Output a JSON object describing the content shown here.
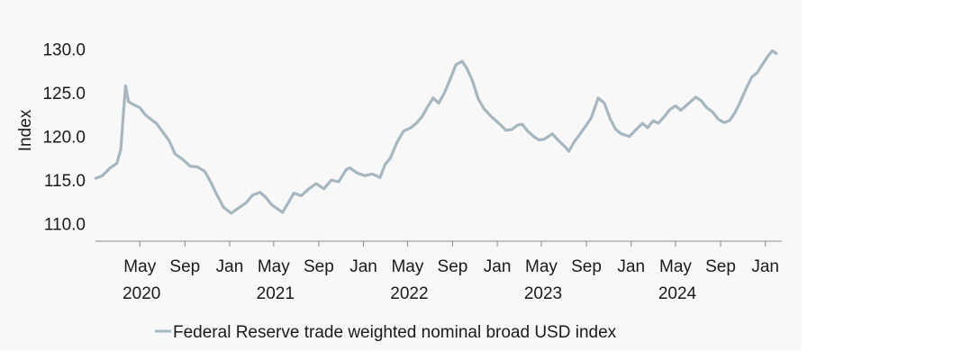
{
  "chart_data": {
    "type": "line",
    "title": "",
    "xlabel": "",
    "ylabel": "Index",
    "ylim": [
      108,
      131.5
    ],
    "yticks": [
      "110.0",
      "115.0",
      "120.0",
      "125.0",
      "130.0"
    ],
    "ytick_values": [
      110,
      115,
      120,
      125,
      130
    ],
    "xlim": [
      "2020-01-01",
      "2025-02-15"
    ],
    "xticks": [
      {
        "date": "2020-05-01",
        "label": "May",
        "year": "2020"
      },
      {
        "date": "2020-09-01",
        "label": "Sep",
        "year": ""
      },
      {
        "date": "2021-01-01",
        "label": "Jan",
        "year": ""
      },
      {
        "date": "2021-05-01",
        "label": "May",
        "year": "2021"
      },
      {
        "date": "2021-09-01",
        "label": "Sep",
        "year": ""
      },
      {
        "date": "2022-01-01",
        "label": "Jan",
        "year": ""
      },
      {
        "date": "2022-05-01",
        "label": "May",
        "year": "2022"
      },
      {
        "date": "2022-09-01",
        "label": "Sep",
        "year": ""
      },
      {
        "date": "2023-01-01",
        "label": "Jan",
        "year": ""
      },
      {
        "date": "2023-05-01",
        "label": "May",
        "year": "2023"
      },
      {
        "date": "2023-09-01",
        "label": "Sep",
        "year": ""
      },
      {
        "date": "2024-01-01",
        "label": "Jan",
        "year": ""
      },
      {
        "date": "2024-05-01",
        "label": "May",
        "year": "2024"
      },
      {
        "date": "2024-09-01",
        "label": "Sep",
        "year": ""
      },
      {
        "date": "2025-01-01",
        "label": "Jan",
        "year": ""
      }
    ],
    "grid": false,
    "legend_position": "bottom-left",
    "series": [
      {
        "name": "Federal Reserve trade weighted nominal broad USD index",
        "color": "#a6b7c0",
        "x": [
          "2020-01-02",
          "2020-01-20",
          "2020-02-10",
          "2020-02-28",
          "2020-03-10",
          "2020-03-18",
          "2020-03-23",
          "2020-03-31",
          "2020-04-15",
          "2020-05-01",
          "2020-05-15",
          "2020-06-05",
          "2020-06-15",
          "2020-07-01",
          "2020-07-20",
          "2020-08-05",
          "2020-08-25",
          "2020-09-15",
          "2020-10-05",
          "2020-10-25",
          "2020-11-10",
          "2020-11-25",
          "2020-12-15",
          "2021-01-05",
          "2021-01-25",
          "2021-02-15",
          "2021-03-05",
          "2021-03-25",
          "2021-04-10",
          "2021-04-25",
          "2021-05-15",
          "2021-05-25",
          "2021-06-10",
          "2021-06-25",
          "2021-07-15",
          "2021-08-05",
          "2021-08-25",
          "2021-09-15",
          "2021-10-05",
          "2021-10-25",
          "2021-11-15",
          "2021-11-25",
          "2021-12-15",
          "2022-01-05",
          "2022-01-25",
          "2022-02-15",
          "2022-03-01",
          "2022-03-15",
          "2022-04-01",
          "2022-04-20",
          "2022-05-10",
          "2022-05-25",
          "2022-06-10",
          "2022-06-25",
          "2022-07-10",
          "2022-07-25",
          "2022-08-10",
          "2022-08-25",
          "2022-09-10",
          "2022-09-27",
          "2022-10-10",
          "2022-10-25",
          "2022-11-10",
          "2022-11-25",
          "2022-12-15",
          "2023-01-05",
          "2023-01-25",
          "2023-02-10",
          "2023-02-25",
          "2023-03-10",
          "2023-03-25",
          "2023-04-10",
          "2023-04-25",
          "2023-05-10",
          "2023-05-31",
          "2023-06-15",
          "2023-07-05",
          "2023-07-15",
          "2023-07-30",
          "2023-08-15",
          "2023-09-01",
          "2023-09-15",
          "2023-10-03",
          "2023-10-20",
          "2023-11-05",
          "2023-11-20",
          "2023-12-05",
          "2023-12-27",
          "2024-01-15",
          "2024-02-01",
          "2024-02-15",
          "2024-03-01",
          "2024-03-15",
          "2024-04-01",
          "2024-04-16",
          "2024-05-01",
          "2024-05-15",
          "2024-06-01",
          "2024-06-25",
          "2024-07-10",
          "2024-07-25",
          "2024-08-10",
          "2024-08-25",
          "2024-09-10",
          "2024-09-25",
          "2024-10-10",
          "2024-10-25",
          "2024-11-10",
          "2024-11-25",
          "2024-12-10",
          "2024-12-25",
          "2025-01-10",
          "2025-01-20",
          "2025-01-31"
        ],
        "values": [
          115.2,
          115.5,
          116.4,
          116.9,
          118.5,
          123.0,
          125.8,
          124.0,
          123.6,
          123.3,
          122.5,
          121.8,
          121.5,
          120.6,
          119.5,
          118.0,
          117.4,
          116.6,
          116.5,
          116.0,
          114.8,
          113.5,
          111.9,
          111.2,
          111.8,
          112.4,
          113.3,
          113.6,
          113.0,
          112.2,
          111.6,
          111.3,
          112.4,
          113.5,
          113.2,
          114.0,
          114.6,
          114.0,
          115.0,
          114.8,
          116.2,
          116.4,
          115.8,
          115.5,
          115.7,
          115.3,
          116.8,
          117.5,
          119.2,
          120.6,
          121.0,
          121.5,
          122.3,
          123.4,
          124.4,
          123.8,
          125.0,
          126.5,
          128.2,
          128.6,
          127.8,
          126.4,
          124.3,
          123.2,
          122.3,
          121.5,
          120.7,
          120.8,
          121.3,
          121.4,
          120.6,
          120.0,
          119.6,
          119.7,
          120.3,
          119.6,
          118.8,
          118.3,
          119.4,
          120.3,
          121.3,
          122.2,
          124.4,
          123.8,
          122.0,
          120.8,
          120.3,
          120.0,
          120.8,
          121.5,
          121.0,
          121.8,
          121.5,
          122.3,
          123.1,
          123.5,
          123.0,
          123.6,
          124.5,
          124.1,
          123.3,
          122.8,
          122.0,
          121.6,
          121.8,
          122.7,
          124.0,
          125.5,
          126.8,
          127.3,
          128.3,
          129.3,
          129.8,
          129.5
        ]
      }
    ]
  }
}
